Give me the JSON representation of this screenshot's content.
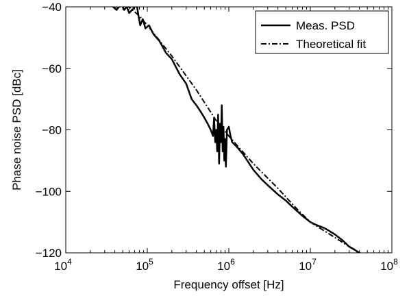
{
  "chart_data": {
    "type": "line",
    "xlabel": "Frequency offset [Hz]",
    "ylabel": "Phase noise PSD [dBc]",
    "xscale": "log",
    "xlim": [
      10000,
      100000000
    ],
    "ylim": [
      -120,
      -40
    ],
    "x_ticks": [
      10000,
      100000,
      1000000,
      10000000,
      100000000
    ],
    "x_tick_labels": [
      {
        "base": "10",
        "exp": "4"
      },
      {
        "base": "10",
        "exp": "5"
      },
      {
        "base": "10",
        "exp": "6"
      },
      {
        "base": "10",
        "exp": "7"
      },
      {
        "base": "10",
        "exp": "8"
      }
    ],
    "y_ticks": [
      -40,
      -60,
      -80,
      -100,
      -120
    ],
    "y_tick_labels": [
      "−40",
      "−60",
      "−80",
      "−100",
      "−120"
    ],
    "grid": false,
    "legend_position": "top-right",
    "series": [
      {
        "name": "Meas. PSD",
        "style": "solid",
        "color": "#000000",
        "x": [
          38000,
          42000,
          48000,
          52000,
          56000,
          60000,
          65000,
          70000,
          74000,
          78000,
          82000,
          88000,
          95000,
          105000,
          120000,
          140000,
          170000,
          200000,
          250000,
          300000,
          350000,
          400000,
          450000,
          500000,
          550000,
          600000,
          640000,
          660000,
          680000,
          700000,
          720000,
          740000,
          760000,
          780000,
          800000,
          820000,
          840000,
          860000,
          880000,
          900000,
          920000,
          950000,
          1000000,
          1050000,
          1100000,
          1200000,
          1300000,
          1500000,
          2000000,
          2500000,
          3000000,
          4000000,
          5000000,
          6000000,
          8000000,
          10000000,
          12000000,
          15000000,
          20000000,
          25000000,
          30000000,
          35000000,
          40000000,
          45000000
        ],
        "y": [
          -40,
          -41,
          -39,
          -41,
          -40,
          -42,
          -41,
          -40,
          -39,
          -43,
          -46,
          -44,
          -47,
          -46,
          -49,
          -51,
          -55,
          -57,
          -62,
          -65,
          -70,
          -72,
          -74,
          -76,
          -78,
          -80,
          -82,
          -76,
          -84,
          -80,
          -87,
          -75,
          -91,
          -78,
          -84,
          -72,
          -87,
          -79,
          -90,
          -83,
          -92,
          -80,
          -79,
          -82,
          -84,
          -85,
          -86,
          -88,
          -93,
          -96,
          -98,
          -101,
          -103,
          -105,
          -108,
          -110,
          -111,
          -112,
          -114,
          -116,
          -118,
          -119,
          -120,
          -121
        ]
      },
      {
        "name": "Theoretical fit",
        "style": "dashdot",
        "color": "#000000",
        "x": [
          40000,
          60000,
          80000,
          100000,
          200000,
          400000,
          700000,
          1000000,
          2000000,
          4000000,
          7000000,
          10000000,
          20000000,
          45000000
        ],
        "y": [
          -40,
          -40,
          -43,
          -46,
          -56,
          -67,
          -77,
          -82,
          -91,
          -99,
          -106,
          -110,
          -115,
          -121
        ]
      }
    ]
  }
}
